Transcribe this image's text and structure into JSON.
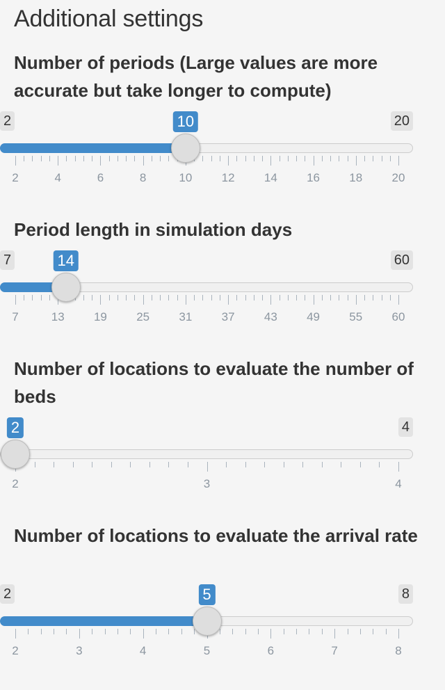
{
  "heading": "Additional settings",
  "sliders": [
    {
      "label": "Number of periods (Large values are more accurate but take longer to compute)",
      "min": 2,
      "max": 20,
      "value": 10,
      "min_text": "2",
      "max_text": "20",
      "value_text": "10",
      "tick_labels": [
        "2",
        "4",
        "6",
        "8",
        "10",
        "12",
        "14",
        "16",
        "18",
        "20"
      ]
    },
    {
      "label": "Period length in simulation days",
      "min": 7,
      "max": 60,
      "value": 14,
      "min_text": "7",
      "max_text": "60",
      "value_text": "14",
      "tick_labels": [
        "7",
        "13",
        "19",
        "25",
        "31",
        "37",
        "43",
        "49",
        "55",
        "60"
      ]
    },
    {
      "label": "Number of locations to evaluate the number of beds",
      "min": 2,
      "max": 4,
      "value": 2,
      "min_text": "2",
      "max_text": "4",
      "value_text": "2",
      "tick_labels": [
        "2",
        "3",
        "4"
      ]
    },
    {
      "label": "Number of locations to evaluate the arrival rate",
      "min": 2,
      "max": 8,
      "value": 5,
      "min_text": "2",
      "max_text": "8",
      "value_text": "5",
      "tick_labels": [
        "2",
        "3",
        "4",
        "5",
        "6",
        "7",
        "8"
      ]
    }
  ],
  "colors": {
    "accent": "#428bca",
    "background": "#f5f5f5"
  }
}
